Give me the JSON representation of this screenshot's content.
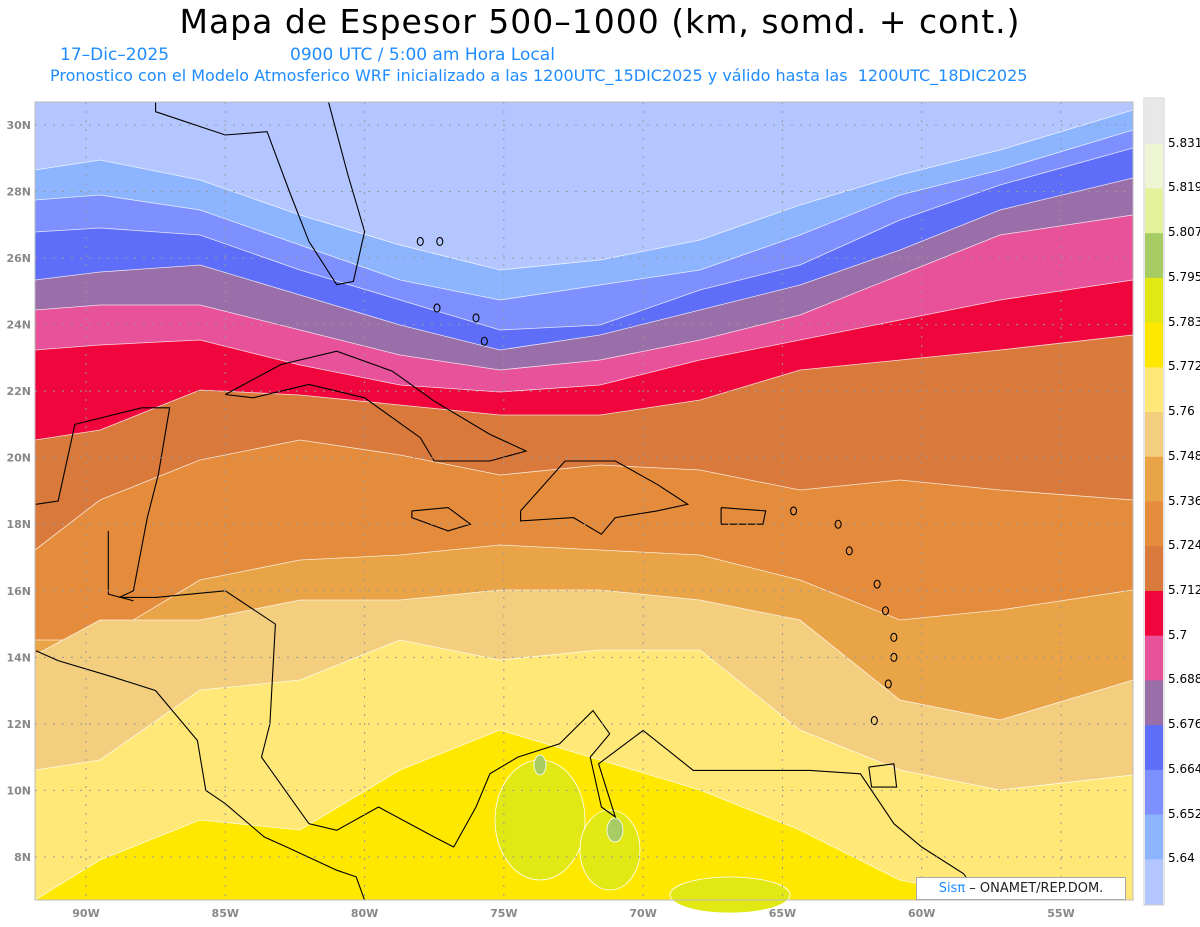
{
  "title": "Mapa de Espesor 500–1000 (km, somd. + cont.)",
  "date": "17–Dic–2025",
  "time": "0900 UTC / 5:00 am Hora Local",
  "subtitle": "Pronostico con el Modelo Atmosferico WRF inicializado a las 1200UTC_15DIC2025 y válido hasta las  1200UTC_18DIC2025",
  "credit": {
    "brand": "Sisπ",
    "text": " – ONAMET/REP.DOM."
  },
  "chart_data": {
    "type": "heatmap",
    "variable": "500-1000 hPa thickness (km)",
    "x_ticks": [
      "90W",
      "85W",
      "80W",
      "75W",
      "70W",
      "65W",
      "60W",
      "55W"
    ],
    "y_ticks": [
      "30N",
      "28N",
      "26N",
      "24N",
      "22N",
      "20N",
      "18N",
      "16N",
      "14N",
      "12N",
      "10N",
      "8N"
    ],
    "lon_range": [
      -91.8,
      -52.4
    ],
    "lat_range": [
      6.7,
      30.7
    ],
    "colorbar": {
      "labels": [
        "5.831",
        "5.819",
        "5.807",
        "5.795",
        "5.783",
        "5.772",
        "5.76",
        "5.748",
        "5.736",
        "5.724",
        "5.712",
        "5.7",
        "5.688",
        "5.676",
        "5.664",
        "5.652",
        "5.64"
      ],
      "colors": [
        "#e8e8e8",
        "#eef5d2",
        "#e4f29c",
        "#a8cc64",
        "#e2e814",
        "#ffe800",
        "#ffe878",
        "#f3ce7e",
        "#e9a447",
        "#e58c3c",
        "#d97a3c",
        "#f0063c",
        "#e8529a",
        "#9a6ea8",
        "#5f6ef8",
        "#7e90ff",
        "#8cb4ff",
        "#b4c6ff"
      ]
    }
  }
}
